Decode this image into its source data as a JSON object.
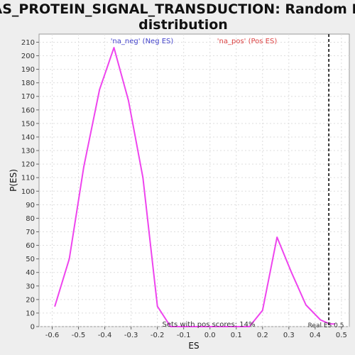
{
  "chart_data": {
    "type": "line",
    "title_line1": "RAS_PROTEIN_SIGNAL_TRANSDUCTION: Random ES",
    "title_line2": "distribution",
    "xlabel": "ES",
    "ylabel": "P(ES)",
    "xlim": [
      -0.65,
      0.53
    ],
    "ylim": [
      0,
      216
    ],
    "xticks": [
      -0.6,
      -0.5,
      -0.4,
      -0.3,
      -0.2,
      -0.1,
      0.0,
      0.1,
      0.2,
      0.3,
      0.4,
      0.5
    ],
    "xtick_labels": [
      "-0.6",
      "-0.5",
      "-0.4",
      "-0.3",
      "-0.2",
      "-0.1",
      "0.0",
      "0.1",
      "0.2",
      "0.3",
      "0.4",
      "0.5"
    ],
    "yticks": [
      0,
      10,
      20,
      30,
      40,
      50,
      60,
      70,
      80,
      90,
      100,
      110,
      120,
      130,
      140,
      150,
      160,
      170,
      180,
      190,
      200,
      210
    ],
    "grid": true,
    "series": [
      {
        "name": "distribution",
        "color": "#ee44ee",
        "x": [
          -0.59,
          -0.535,
          -0.48,
          -0.42,
          -0.365,
          -0.31,
          -0.255,
          -0.2,
          -0.15,
          -0.05,
          0.05,
          0.15,
          0.2,
          0.255,
          0.31,
          0.365,
          0.42,
          0.455,
          0.475
        ],
        "y": [
          15,
          50,
          118,
          175,
          206,
          167,
          110,
          15,
          0,
          0,
          0,
          0,
          12,
          66,
          40,
          16,
          5,
          2,
          2
        ]
      }
    ],
    "real_es": 0.452,
    "real_es_color": "#333333",
    "legend": [
      {
        "label": "'na_neg' (Neg ES)",
        "color": "#4444cc"
      },
      {
        "label": "'na_pos' (Pos ES)",
        "color": "#dd4444"
      }
    ],
    "annotations": {
      "pos_scores": "Sets with pos scores: 14%",
      "real_es": "Real ES 0.5"
    }
  }
}
